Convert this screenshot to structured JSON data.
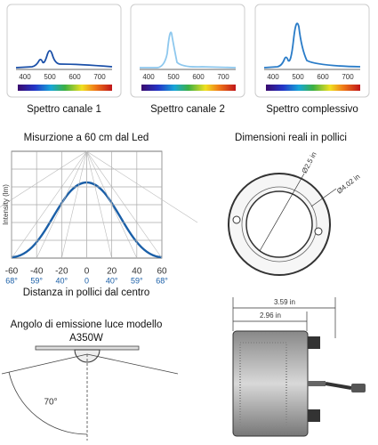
{
  "spectra": [
    {
      "caption": "Spettro canale 1",
      "ticks": [
        "400",
        "500",
        "600",
        "700"
      ]
    },
    {
      "caption": "Spettro canale 2",
      "ticks": [
        "400",
        "500",
        "600",
        "700"
      ]
    },
    {
      "caption": "Spettro complessivo",
      "ticks": [
        "400",
        "500",
        "600",
        "700"
      ]
    }
  ],
  "intensity": {
    "title": "Misurzione a 60 cm dal Led",
    "y_label": "Intensity (lm)",
    "x_ticks": [
      "-60",
      "-40",
      "-20",
      "0",
      "20",
      "40",
      "60"
    ],
    "angle_ticks": [
      "68°",
      "59°",
      "40°",
      "0",
      "40°",
      "59°",
      "68°"
    ],
    "x_label": "Distanza in pollici dal centro"
  },
  "dimensions": {
    "title": "Dimensioni reali in pollici",
    "inner": "Ø2.5 in",
    "outer": "Ø4.02 in"
  },
  "emission": {
    "title": [
      "Angolo di emissione luce modello",
      "A350W"
    ],
    "angle": "70°"
  },
  "side": {
    "width_outer": "3.59 in",
    "width_inner": "2.96 in"
  }
}
